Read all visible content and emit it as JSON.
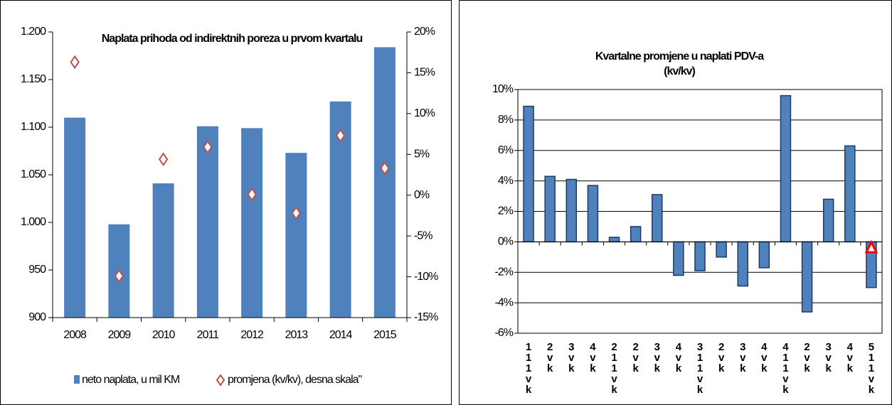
{
  "chart_data": [
    {
      "type": "combo",
      "title": "Naplata prihoda od indirektnih poreza u prvom kvartalu",
      "categories": [
        "2008",
        "2009",
        "2010",
        "2011",
        "2012",
        "2013",
        "2014",
        "2015"
      ],
      "series": [
        {
          "name": "neto naplata, u mil KM",
          "color": "#4f81bd",
          "values": [
            1110,
            998,
            1041,
            1101,
            1099,
            1073,
            1127,
            1184
          ]
        },
        {
          "name": "promjena (kv/kv), desna skala\"",
          "color": "#c0504d",
          "axis": "y2",
          "values": [
            16.3,
            -9.9,
            4.4,
            5.9,
            0.1,
            -2.2,
            7.3,
            3.3
          ]
        }
      ],
      "ylim": [
        900,
        1200
      ],
      "yticks": [
        {
          "value": 1200,
          "label": "1.200"
        },
        {
          "value": 1150,
          "label": "1.150"
        },
        {
          "value": 1100,
          "label": "1.100"
        },
        {
          "value": 1050,
          "label": "1.050"
        },
        {
          "value": 1000,
          "label": "1.000"
        },
        950,
        900
      ],
      "y2lim": [
        -15,
        20
      ],
      "y2ticks": [
        {
          "value": 20,
          "label": "20%"
        },
        {
          "value": 15,
          "label": "15%"
        },
        {
          "value": 10,
          "label": "10%"
        },
        {
          "value": 5,
          "label": "5%"
        },
        {
          "value": 0,
          "label": "0%"
        },
        {
          "value": -5,
          "label": "-5%"
        },
        {
          "value": -10,
          "label": "-10%"
        },
        {
          "value": -15,
          "label": "-15%"
        }
      ]
    },
    {
      "type": "bar",
      "title": "Kvartalne promjene u naplati PDV-a",
      "subtitle": "(kv/kv)",
      "categories": [
        "111vk",
        "2vk",
        "3vk",
        "4vk",
        "211vk",
        "2vk",
        "3vk",
        "4vk",
        "311vk",
        "2vk",
        "3vk",
        "4vk",
        "411vk",
        "2vk",
        "3vk",
        "4vk",
        "511vk"
      ],
      "values": [
        8.9,
        4.3,
        4.1,
        3.7,
        0.3,
        1.0,
        3.1,
        -2.2,
        -1.9,
        -1.0,
        -2.9,
        -1.7,
        9.6,
        -4.6,
        2.8,
        6.3,
        -3.0
      ],
      "marker_values": [
        null,
        null,
        null,
        null,
        null,
        null,
        null,
        null,
        null,
        null,
        null,
        null,
        null,
        null,
        null,
        null,
        -0.4
      ],
      "color": "#4f81bd",
      "marker_color": "#ff0000",
      "grid": true,
      "ylim": [
        -6,
        10
      ],
      "yticks": [
        {
          "value": 10,
          "label": "10%"
        },
        {
          "value": 8,
          "label": "8%"
        },
        {
          "value": 6,
          "label": "6%"
        },
        {
          "value": 4,
          "label": "4%"
        },
        {
          "value": 2,
          "label": "2%"
        },
        {
          "value": 0,
          "label": "0%"
        },
        {
          "value": -2,
          "label": "-2%"
        },
        {
          "value": -4,
          "label": "-4%"
        },
        {
          "value": -6,
          "label": "-6%"
        }
      ]
    }
  ]
}
